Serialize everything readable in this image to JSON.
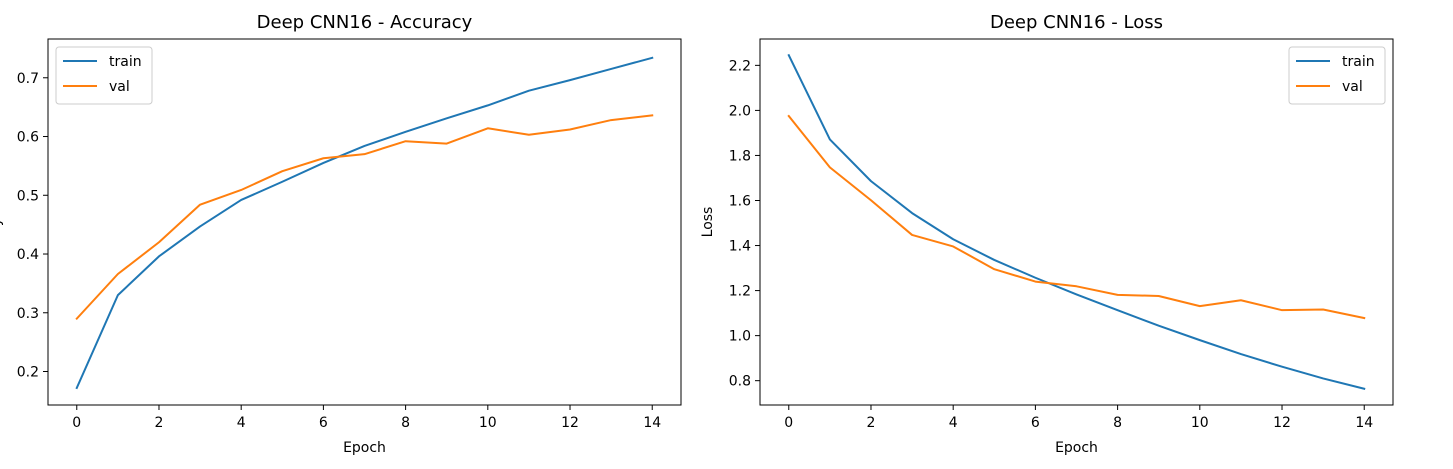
{
  "chart_data": [
    {
      "type": "line",
      "title": "Deep CNN16 - Accuracy",
      "xlabel": "Epoch",
      "ylabel": "y",
      "xlim": [
        -0.7,
        14.7
      ],
      "ylim": [
        0.143,
        0.766
      ],
      "xticks": [
        0,
        2,
        4,
        6,
        8,
        10,
        12,
        14
      ],
      "yticks": [
        0.2,
        0.3,
        0.4,
        0.5,
        0.6,
        0.7
      ],
      "grid": false,
      "legend": "upper left",
      "x": [
        0,
        1,
        2,
        3,
        4,
        5,
        6,
        7,
        8,
        9,
        10,
        11,
        12,
        13,
        14
      ],
      "series": [
        {
          "name": "train",
          "color": "#1f77b4",
          "values": [
            0.172,
            0.33,
            0.396,
            0.447,
            0.492,
            0.523,
            0.555,
            0.584,
            0.608,
            0.631,
            0.653,
            0.678,
            0.696,
            0.715,
            0.734
          ]
        },
        {
          "name": "val",
          "color": "#ff7f0e",
          "values": [
            0.29,
            0.366,
            0.42,
            0.484,
            0.509,
            0.541,
            0.563,
            0.57,
            0.592,
            0.588,
            0.614,
            0.603,
            0.612,
            0.628,
            0.636
          ]
        }
      ]
    },
    {
      "type": "line",
      "title": "Deep CNN16 - Loss",
      "xlabel": "Epoch",
      "ylabel": "Loss",
      "xlim": [
        -0.7,
        14.7
      ],
      "ylim": [
        0.692,
        2.317
      ],
      "xticks": [
        0,
        2,
        4,
        6,
        8,
        10,
        12,
        14
      ],
      "yticks": [
        0.8,
        1.0,
        1.2,
        1.4,
        1.6,
        1.8,
        2.0,
        2.2
      ],
      "yticklabels": [
        "0.8",
        "1.0",
        "1.2",
        "1.4",
        "1.6",
        "1.8",
        "2.0",
        "2.2"
      ],
      "grid": false,
      "legend": "upper right",
      "x": [
        0,
        1,
        2,
        3,
        4,
        5,
        6,
        7,
        8,
        9,
        10,
        11,
        12,
        13,
        14
      ],
      "series": [
        {
          "name": "train",
          "color": "#1f77b4",
          "values": [
            2.245,
            1.871,
            1.686,
            1.544,
            1.428,
            1.336,
            1.257,
            1.183,
            1.113,
            1.044,
            0.98,
            0.918,
            0.862,
            0.81,
            0.764
          ]
        },
        {
          "name": "val",
          "color": "#ff7f0e",
          "values": [
            1.975,
            1.747,
            1.601,
            1.447,
            1.396,
            1.295,
            1.24,
            1.219,
            1.181,
            1.176,
            1.131,
            1.157,
            1.113,
            1.116,
            1.078
          ]
        }
      ]
    }
  ]
}
